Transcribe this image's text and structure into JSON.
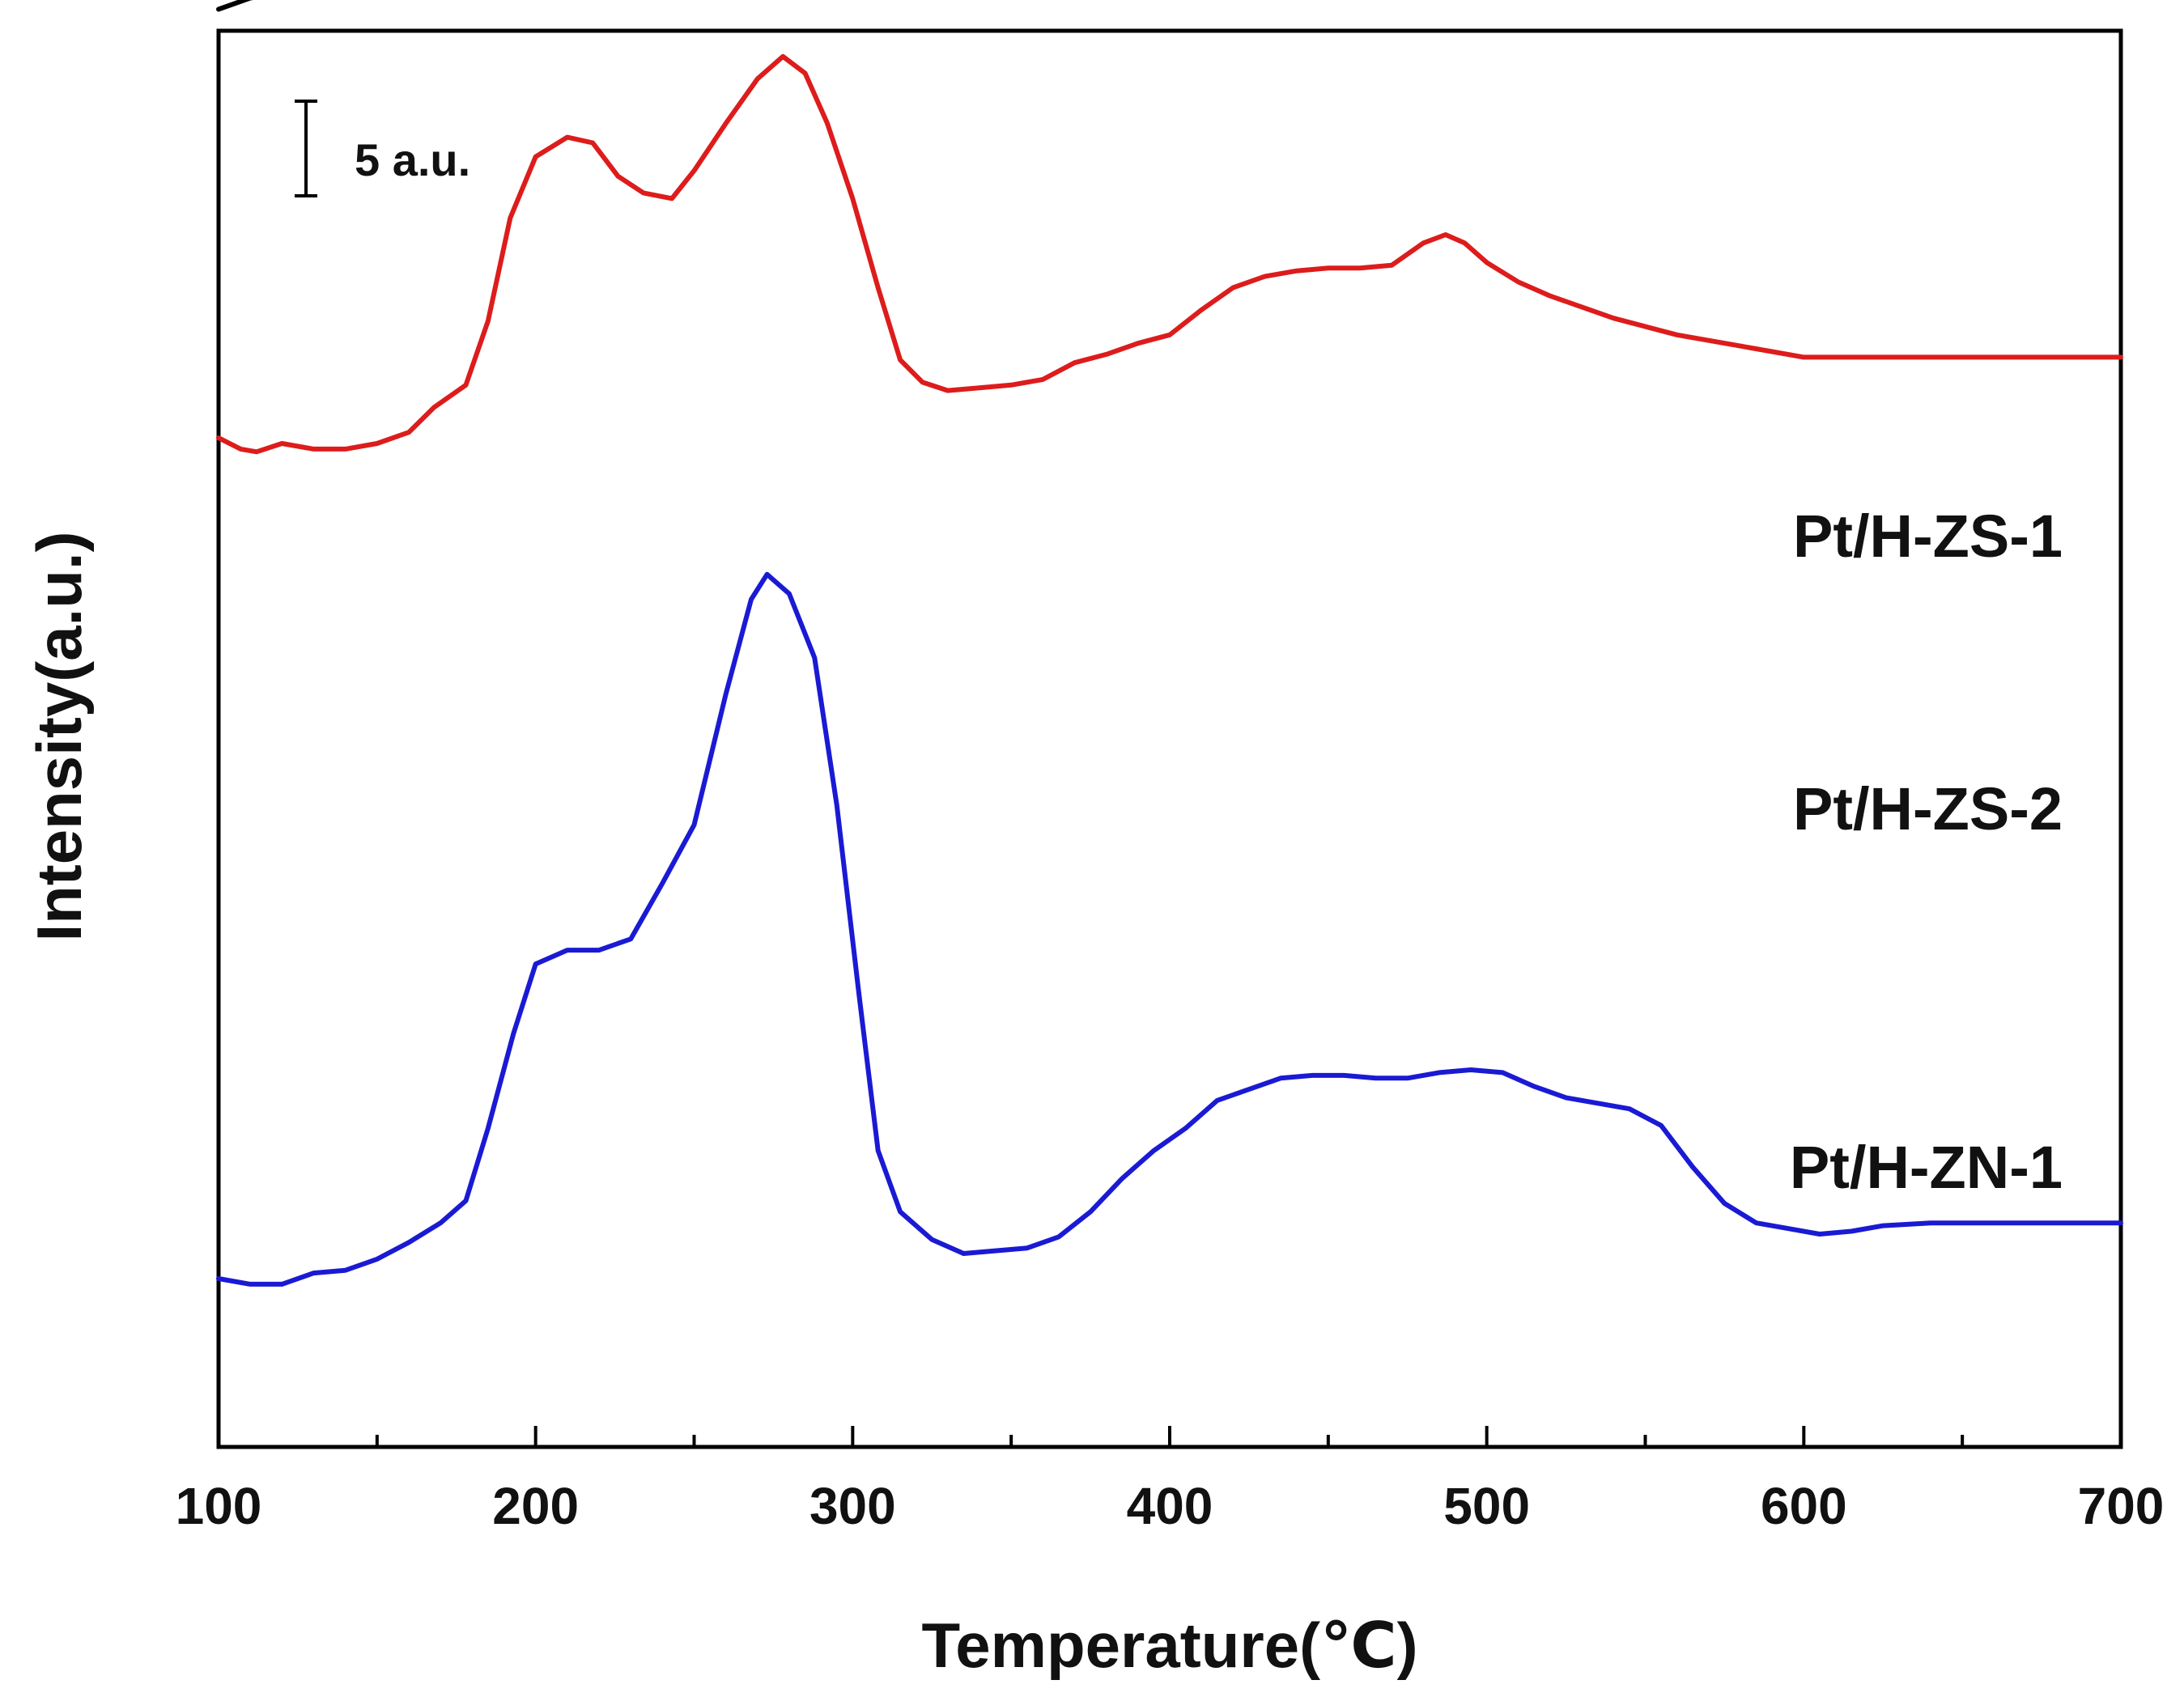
{
  "chart_data": {
    "type": "line",
    "title": "",
    "xlabel": "Temperature(℃)",
    "ylabel": "Intensity(a.u.)",
    "xlim": [
      100,
      700
    ],
    "xticks": [
      "100",
      "200",
      "300",
      "400",
      "500",
      "600",
      "700"
    ],
    "scale_bar_label": "5 a.u.",
    "grid": false,
    "series": [
      {
        "name": "Pt/H-ZS-1",
        "color": "#000000",
        "points": [
          [
            100,
            0.6
          ],
          [
            110,
            1.0
          ],
          [
            120,
            1.2
          ],
          [
            130,
            1.1
          ],
          [
            140,
            1.4
          ],
          [
            150,
            1.8
          ],
          [
            160,
            2.6
          ],
          [
            170,
            3.9
          ],
          [
            180,
            6.8
          ],
          [
            190,
            11.8
          ],
          [
            200,
            15.6
          ],
          [
            210,
            17.3
          ],
          [
            218,
            16.7
          ],
          [
            226,
            15.0
          ],
          [
            233,
            14.2
          ],
          [
            240,
            14.7
          ],
          [
            250,
            16.2
          ],
          [
            260,
            17.6
          ],
          [
            268,
            18.4
          ],
          [
            275,
            18.6
          ],
          [
            282,
            17.0
          ],
          [
            290,
            13.0
          ],
          [
            297,
            7.6
          ],
          [
            303,
            4.2
          ],
          [
            310,
            2.9
          ],
          [
            320,
            2.5
          ],
          [
            330,
            2.4
          ],
          [
            340,
            2.6
          ],
          [
            350,
            2.8
          ],
          [
            360,
            3.0
          ],
          [
            370,
            3.1
          ],
          [
            380,
            3.2
          ],
          [
            390,
            4.3
          ],
          [
            400,
            5.8
          ],
          [
            410,
            7.1
          ],
          [
            420,
            7.7
          ],
          [
            430,
            8.3
          ],
          [
            440,
            8.6
          ],
          [
            450,
            8.5
          ],
          [
            460,
            8.7
          ],
          [
            470,
            8.8
          ],
          [
            480,
            8.7
          ],
          [
            490,
            8.5
          ],
          [
            500,
            8.2
          ],
          [
            510,
            7.8
          ],
          [
            520,
            7.2
          ],
          [
            530,
            6.6
          ],
          [
            540,
            6.1
          ],
          [
            550,
            5.6
          ],
          [
            560,
            5.0
          ],
          [
            570,
            4.1
          ],
          [
            580,
            2.9
          ],
          [
            590,
            2.0
          ],
          [
            600,
            1.6
          ],
          [
            610,
            1.4
          ],
          [
            620,
            1.7
          ],
          [
            640,
            1.9
          ],
          [
            660,
            1.9
          ],
          [
            680,
            1.9
          ],
          [
            700,
            1.9
          ]
        ]
      },
      {
        "name": "Pt/H-ZS-2",
        "color": "#dd1c1c",
        "points": [
          [
            100,
            0.4
          ],
          [
            107,
            0.0
          ],
          [
            112,
            -0.1
          ],
          [
            120,
            0.2
          ],
          [
            130,
            0.0
          ],
          [
            140,
            0.0
          ],
          [
            150,
            0.2
          ],
          [
            160,
            0.6
          ],
          [
            168,
            1.5
          ],
          [
            178,
            2.3
          ],
          [
            185,
            4.6
          ],
          [
            192,
            8.3
          ],
          [
            200,
            10.5
          ],
          [
            210,
            11.2
          ],
          [
            218,
            11.0
          ],
          [
            226,
            9.8
          ],
          [
            234,
            9.2
          ],
          [
            243,
            9.0
          ],
          [
            250,
            10.0
          ],
          [
            260,
            11.7
          ],
          [
            270,
            13.3
          ],
          [
            278,
            14.1
          ],
          [
            285,
            13.5
          ],
          [
            292,
            11.7
          ],
          [
            300,
            9.0
          ],
          [
            308,
            5.8
          ],
          [
            315,
            3.2
          ],
          [
            322,
            2.4
          ],
          [
            330,
            2.1
          ],
          [
            340,
            2.2
          ],
          [
            350,
            2.3
          ],
          [
            360,
            2.5
          ],
          [
            370,
            3.1
          ],
          [
            380,
            3.4
          ],
          [
            390,
            3.8
          ],
          [
            400,
            4.1
          ],
          [
            410,
            5.0
          ],
          [
            420,
            5.8
          ],
          [
            430,
            6.2
          ],
          [
            440,
            6.4
          ],
          [
            450,
            6.5
          ],
          [
            460,
            6.5
          ],
          [
            470,
            6.6
          ],
          [
            480,
            7.4
          ],
          [
            487,
            7.7
          ],
          [
            493,
            7.4
          ],
          [
            500,
            6.7
          ],
          [
            510,
            6.0
          ],
          [
            520,
            5.5
          ],
          [
            530,
            5.1
          ],
          [
            540,
            4.7
          ],
          [
            550,
            4.4
          ],
          [
            560,
            4.1
          ],
          [
            570,
            3.9
          ],
          [
            580,
            3.7
          ],
          [
            590,
            3.5
          ],
          [
            600,
            3.3
          ],
          [
            620,
            3.3
          ],
          [
            650,
            3.3
          ],
          [
            680,
            3.3
          ],
          [
            700,
            3.3
          ]
        ]
      },
      {
        "name": "Pt/H-ZN-1",
        "color": "#1a1ad4",
        "points": [
          [
            100,
            0.0
          ],
          [
            110,
            -0.2
          ],
          [
            120,
            -0.2
          ],
          [
            130,
            0.2
          ],
          [
            140,
            0.3
          ],
          [
            150,
            0.7
          ],
          [
            160,
            1.3
          ],
          [
            170,
            2.0
          ],
          [
            178,
            2.8
          ],
          [
            185,
            5.4
          ],
          [
            193,
            8.8
          ],
          [
            200,
            11.3
          ],
          [
            210,
            11.8
          ],
          [
            220,
            11.8
          ],
          [
            230,
            12.2
          ],
          [
            240,
            14.2
          ],
          [
            250,
            16.3
          ],
          [
            260,
            21.0
          ],
          [
            268,
            24.4
          ],
          [
            273,
            25.3
          ],
          [
            280,
            24.6
          ],
          [
            288,
            22.3
          ],
          [
            295,
            17.0
          ],
          [
            302,
            10.2
          ],
          [
            308,
            4.6
          ],
          [
            315,
            2.4
          ],
          [
            325,
            1.4
          ],
          [
            335,
            0.9
          ],
          [
            345,
            1.0
          ],
          [
            355,
            1.1
          ],
          [
            365,
            1.5
          ],
          [
            375,
            2.4
          ],
          [
            385,
            3.6
          ],
          [
            395,
            4.6
          ],
          [
            405,
            5.4
          ],
          [
            415,
            6.4
          ],
          [
            425,
            6.8
          ],
          [
            435,
            7.2
          ],
          [
            445,
            7.3
          ],
          [
            455,
            7.3
          ],
          [
            465,
            7.2
          ],
          [
            475,
            7.2
          ],
          [
            485,
            7.4
          ],
          [
            495,
            7.5
          ],
          [
            505,
            7.4
          ],
          [
            515,
            6.9
          ],
          [
            525,
            6.5
          ],
          [
            535,
            6.3
          ],
          [
            545,
            6.1
          ],
          [
            555,
            5.5
          ],
          [
            565,
            4.0
          ],
          [
            575,
            2.7
          ],
          [
            585,
            2.0
          ],
          [
            595,
            1.8
          ],
          [
            605,
            1.6
          ],
          [
            615,
            1.7
          ],
          [
            625,
            1.9
          ],
          [
            640,
            2.0
          ],
          [
            660,
            2.0
          ],
          [
            680,
            2.0
          ],
          [
            700,
            2.0
          ]
        ]
      }
    ]
  }
}
